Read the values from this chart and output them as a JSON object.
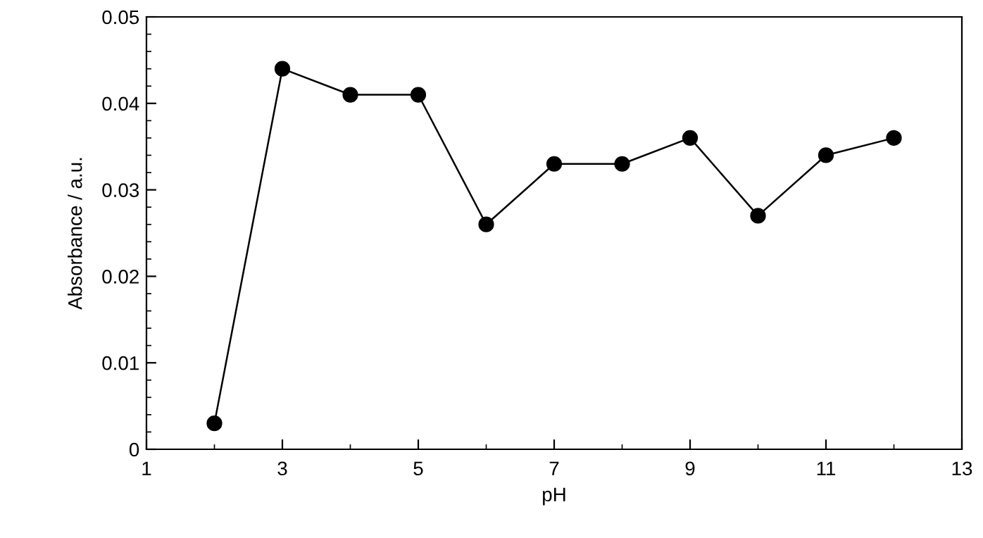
{
  "chart_data": {
    "type": "line",
    "xlabel": "pH",
    "ylabel": "Absorbance / a.u.",
    "x": [
      2,
      3,
      4,
      5,
      6,
      7,
      8,
      9,
      10,
      11,
      12
    ],
    "series": [
      {
        "color": "#000000",
        "values": [
          0.003,
          0.044,
          0.041,
          0.041,
          0.026,
          0.033,
          0.033,
          0.036,
          0.027,
          0.034,
          0.036
        ]
      }
    ],
    "xlim": [
      1,
      13
    ],
    "xticks": [
      1,
      3,
      5,
      7,
      9,
      11,
      13
    ],
    "ylim": [
      0,
      0.05
    ],
    "yticks": [
      {
        "value": 0,
        "label": "0"
      },
      0.01,
      0.02,
      0.03,
      0.04,
      0.05
    ],
    "grid": false,
    "legend": false,
    "marker": "circle",
    "line_style": "solid"
  }
}
